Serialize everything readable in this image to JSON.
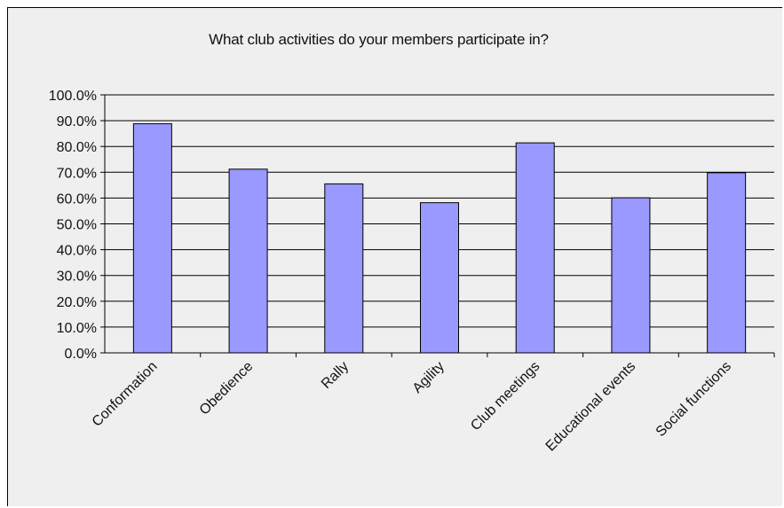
{
  "chart_data": {
    "type": "bar",
    "title": "What club activities do your members participate in?",
    "xlabel": "",
    "ylabel": "",
    "categories": [
      "Conformation",
      "Obedience",
      "Rally",
      "Agility",
      "Club meetings",
      "Educational events",
      "Social functions"
    ],
    "values": [
      0.888,
      0.712,
      0.655,
      0.582,
      0.814,
      0.601,
      0.698
    ],
    "ylim": [
      0,
      1
    ],
    "yticks": [
      "0.0%",
      "10.0%",
      "20.0%",
      "30.0%",
      "40.0%",
      "50.0%",
      "60.0%",
      "70.0%",
      "80.0%",
      "90.0%",
      "100.0%"
    ],
    "grid": true,
    "legend": "none",
    "colors": {
      "bar_fill": "#9999ff",
      "bar_stroke": "#000000",
      "plot_background": "#efefef",
      "gridline": "#000000"
    }
  }
}
